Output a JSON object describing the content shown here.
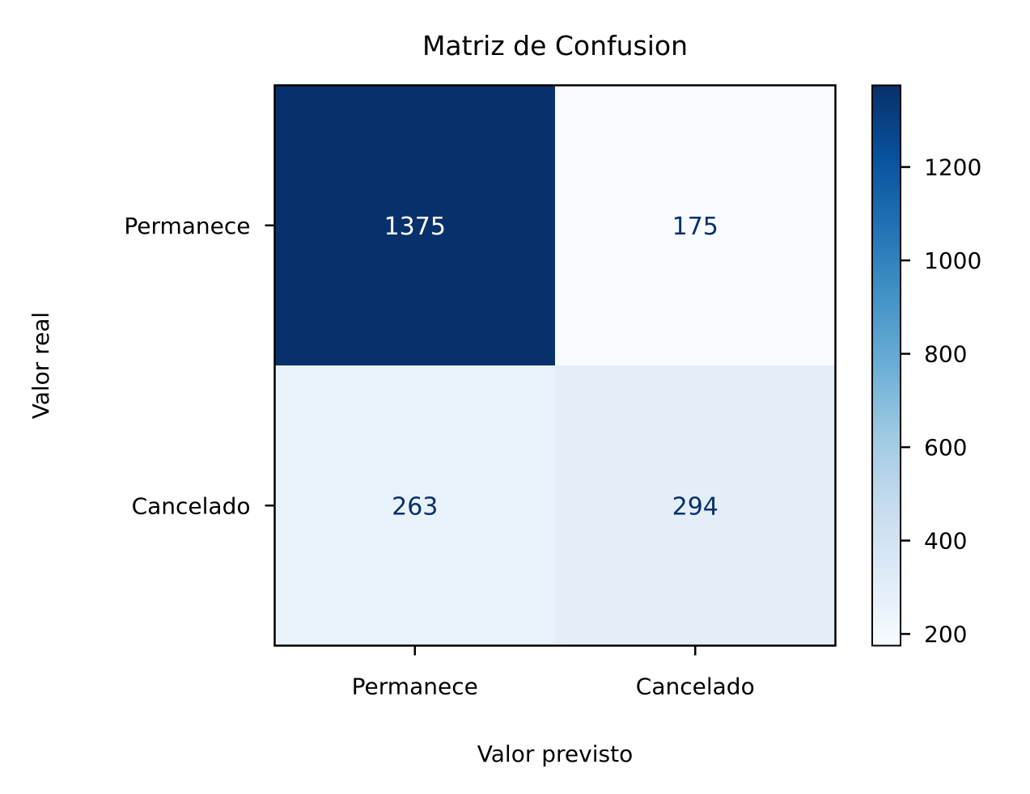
{
  "chart_data": {
    "type": "heatmap",
    "title": "Matriz de Confusion",
    "xlabel": "Valor previsto",
    "ylabel": "Valor real",
    "x_categories": [
      "Permanece",
      "Cancelado"
    ],
    "y_categories": [
      "Permanece",
      "Cancelado"
    ],
    "values": [
      [
        1375,
        175
      ],
      [
        263,
        294
      ]
    ],
    "colormap": "Blues",
    "colorbar": {
      "min": 175,
      "max": 1375,
      "ticks": [
        200,
        400,
        600,
        800,
        1000,
        1200
      ]
    }
  }
}
